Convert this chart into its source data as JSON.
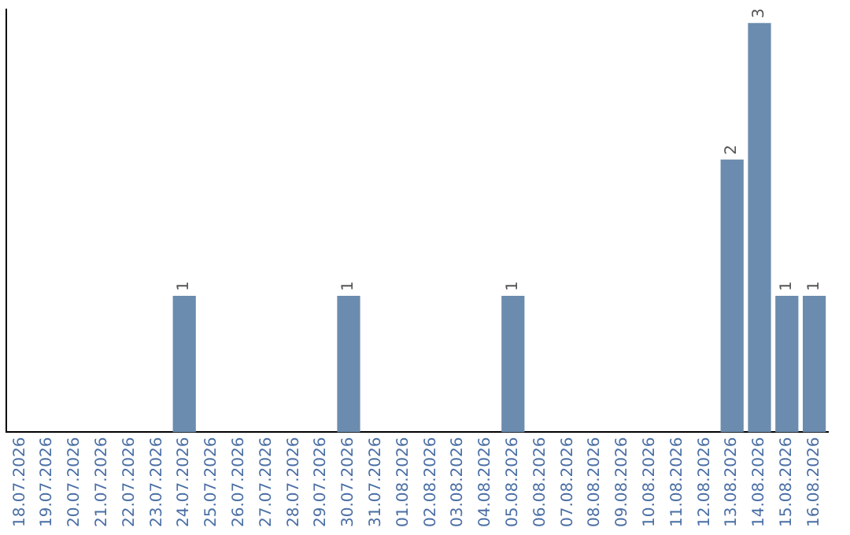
{
  "chart_data": {
    "type": "bar",
    "categories": [
      "18.07.2026",
      "19.07.2026",
      "20.07.2026",
      "21.07.2026",
      "22.07.2026",
      "23.07.2026",
      "24.07.2026",
      "25.07.2026",
      "26.07.2026",
      "27.07.2026",
      "28.07.2026",
      "29.07.2026",
      "30.07.2026",
      "31.07.2026",
      "01.08.2026",
      "02.08.2026",
      "03.08.2026",
      "04.08.2026",
      "05.08.2026",
      "06.08.2026",
      "07.08.2026",
      "08.08.2026",
      "09.08.2026",
      "10.08.2026",
      "11.08.2026",
      "12.08.2026",
      "13.08.2026",
      "14.08.2026",
      "15.08.2026",
      "16.08.2026"
    ],
    "values": [
      0,
      0,
      0,
      0,
      0,
      0,
      1,
      0,
      0,
      0,
      0,
      0,
      1,
      0,
      0,
      0,
      0,
      0,
      1,
      0,
      0,
      0,
      0,
      0,
      0,
      0,
      2,
      3,
      1,
      1
    ],
    "value_labels": [
      null,
      null,
      null,
      null,
      null,
      null,
      "1",
      null,
      null,
      null,
      null,
      null,
      "1",
      null,
      null,
      null,
      null,
      null,
      "1",
      null,
      null,
      null,
      null,
      null,
      null,
      null,
      "2",
      "3",
      "1",
      "1"
    ],
    "color": "#6b8cae",
    "ylim": [
      0,
      3.1
    ],
    "tick_labels": "x",
    "grid": false,
    "legend": false
  }
}
